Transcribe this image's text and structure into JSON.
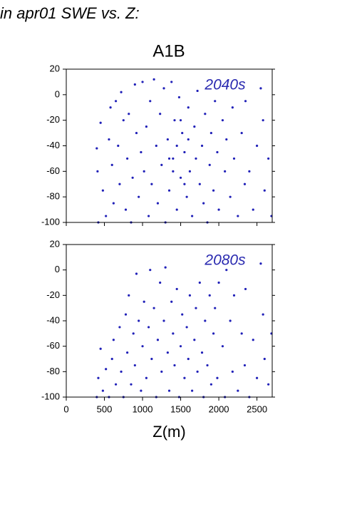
{
  "header": {
    "title": "in apr01 SWE vs. Z:",
    "subtitle": "A1B"
  },
  "chart_data": [
    {
      "type": "scatter",
      "annotation": "2040s",
      "color": "#2020b8",
      "x": [
        400,
        410,
        420,
        450,
        480,
        520,
        560,
        580,
        600,
        620,
        650,
        680,
        700,
        720,
        750,
        780,
        800,
        820,
        850,
        870,
        900,
        920,
        950,
        980,
        1000,
        1020,
        1050,
        1080,
        1100,
        1120,
        1150,
        1180,
        1200,
        1230,
        1250,
        1280,
        1300,
        1330,
        1350,
        1380,
        1400,
        1420,
        1450,
        1480,
        1500,
        1520,
        1550,
        1580,
        1600,
        1620,
        1650,
        1680,
        1700,
        1720,
        1750,
        1780,
        1800,
        1820,
        1850,
        1880,
        1900,
        1930,
        1950,
        1980,
        2000,
        2050,
        2080,
        2100,
        2150,
        2180,
        2200,
        2250,
        2300,
        2340,
        2350,
        2400,
        2450,
        2500,
        2550,
        2580,
        2600,
        2650,
        2690,
        1400,
        1450,
        1500,
        1550,
        1350,
        1600
      ],
      "y": [
        -42,
        -60,
        -100,
        -22,
        -75,
        -95,
        -35,
        -10,
        -55,
        -85,
        -5,
        -40,
        -70,
        2,
        -20,
        -90,
        -50,
        -15,
        -100,
        -65,
        8,
        -30,
        -80,
        -45,
        10,
        -60,
        -25,
        -95,
        -5,
        -70,
        12,
        -40,
        -85,
        -15,
        -55,
        5,
        -100,
        -35,
        -75,
        10,
        -50,
        -20,
        -90,
        -2,
        -65,
        -30,
        -45,
        -80,
        -10,
        -60,
        -95,
        -25,
        -50,
        3,
        -70,
        -40,
        -85,
        -15,
        -100,
        -55,
        -30,
        -75,
        -5,
        -45,
        -90,
        -20,
        -60,
        -35,
        -80,
        -10,
        -50,
        -95,
        -30,
        -70,
        -5,
        -60,
        -90,
        -40,
        5,
        -20,
        -75,
        -50,
        -95,
        -60,
        -40,
        -20,
        -70,
        -50,
        -35
      ],
      "xlim": [
        0,
        2700
      ],
      "xticks": [
        0,
        500,
        1000,
        1500,
        2000,
        2500
      ],
      "ylim": [
        -100,
        20
      ],
      "yticks": [
        -100,
        -80,
        -60,
        -40,
        -20,
        0,
        20
      ]
    },
    {
      "type": "scatter",
      "annotation": "2080s",
      "color": "#2020b8",
      "xlabel": "Z(m)",
      "x": [
        400,
        420,
        450,
        480,
        520,
        560,
        600,
        620,
        650,
        700,
        720,
        750,
        780,
        800,
        820,
        850,
        880,
        900,
        920,
        950,
        980,
        1000,
        1020,
        1050,
        1080,
        1100,
        1120,
        1150,
        1180,
        1200,
        1230,
        1250,
        1280,
        1300,
        1330,
        1350,
        1380,
        1400,
        1420,
        1450,
        1480,
        1500,
        1520,
        1550,
        1580,
        1600,
        1620,
        1650,
        1680,
        1700,
        1720,
        1750,
        1780,
        1800,
        1820,
        1850,
        1880,
        1900,
        1930,
        1950,
        1980,
        2000,
        2050,
        2080,
        2100,
        2150,
        2180,
        2200,
        2250,
        2300,
        2340,
        2350,
        2400,
        2450,
        2500,
        2550,
        2580,
        2600,
        2650,
        2690
      ],
      "y": [
        -100,
        -85,
        -62,
        -95,
        -78,
        -100,
        -70,
        -55,
        -90,
        -45,
        -80,
        -100,
        -35,
        -65,
        -20,
        -90,
        -50,
        -75,
        -3,
        -40,
        -95,
        -60,
        -25,
        -85,
        -45,
        0,
        -70,
        -30,
        -100,
        -55,
        -10,
        -80,
        -40,
        2,
        -65,
        -95,
        -25,
        -50,
        -75,
        -15,
        -100,
        -60,
        -35,
        -85,
        -45,
        -70,
        -20,
        -95,
        -55,
        -30,
        -80,
        -10,
        -65,
        -100,
        -40,
        -75,
        -20,
        -90,
        -50,
        -30,
        -85,
        -10,
        -60,
        -100,
        0,
        -40,
        -80,
        -20,
        -95,
        -50,
        -75,
        -15,
        -100,
        -55,
        -85,
        5,
        -35,
        -70,
        -90,
        -50
      ],
      "xlim": [
        0,
        2700
      ],
      "xticks": [
        0,
        500,
        1000,
        1500,
        2000,
        2500
      ],
      "ylim": [
        -100,
        20
      ],
      "yticks": [
        -100,
        -80,
        -60,
        -40,
        -20,
        0,
        20
      ]
    }
  ]
}
